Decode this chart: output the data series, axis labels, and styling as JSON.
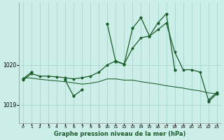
{
  "background_color": "#cceee8",
  "grid_color": "#aad8d0",
  "line_color": "#1a5c2a",
  "xlabel": "Graphe pression niveau de la mer (hPa)",
  "xlim": [
    -0.5,
    23.5
  ],
  "ylim": [
    1018.55,
    1021.55
  ],
  "yticks": [
    1019.0,
    1020.0
  ],
  "xticks": [
    0,
    1,
    2,
    3,
    4,
    5,
    6,
    7,
    8,
    9,
    10,
    11,
    12,
    13,
    14,
    15,
    16,
    17,
    18,
    19,
    20,
    21,
    22,
    23
  ],
  "hours": [
    0,
    1,
    2,
    3,
    4,
    5,
    6,
    7,
    8,
    9,
    10,
    11,
    12,
    13,
    14,
    15,
    16,
    17,
    18,
    19,
    20,
    21,
    22,
    23
  ],
  "line1_jagged": [
    1019.65,
    1019.82,
    null,
    null,
    null,
    1019.62,
    1019.22,
    1019.38,
    null,
    null,
    1021.02,
    1020.08,
    1020.02,
    1020.92,
    1021.18,
    1020.72,
    1021.05,
    1021.28,
    1019.88,
    null,
    null,
    null,
    1019.08,
    1019.28
  ],
  "line2_rising": [
    1019.62,
    1019.78,
    1019.72,
    1019.72,
    1019.7,
    1019.68,
    1019.65,
    1019.68,
    1019.72,
    1019.82,
    1020.0,
    1020.1,
    1020.02,
    1020.42,
    1020.68,
    1020.72,
    1020.88,
    1021.05,
    1020.32,
    1019.88,
    1019.88,
    1019.82,
    1019.12,
    1019.32
  ],
  "line3_falling": [
    1019.68,
    1019.67,
    1019.64,
    1019.62,
    1019.6,
    1019.58,
    1019.55,
    1019.52,
    1019.54,
    1019.58,
    1019.65,
    1019.65,
    1019.62,
    1019.62,
    1019.58,
    1019.55,
    1019.52,
    1019.48,
    1019.45,
    1019.42,
    1019.38,
    1019.35,
    1019.3,
    1019.28
  ]
}
